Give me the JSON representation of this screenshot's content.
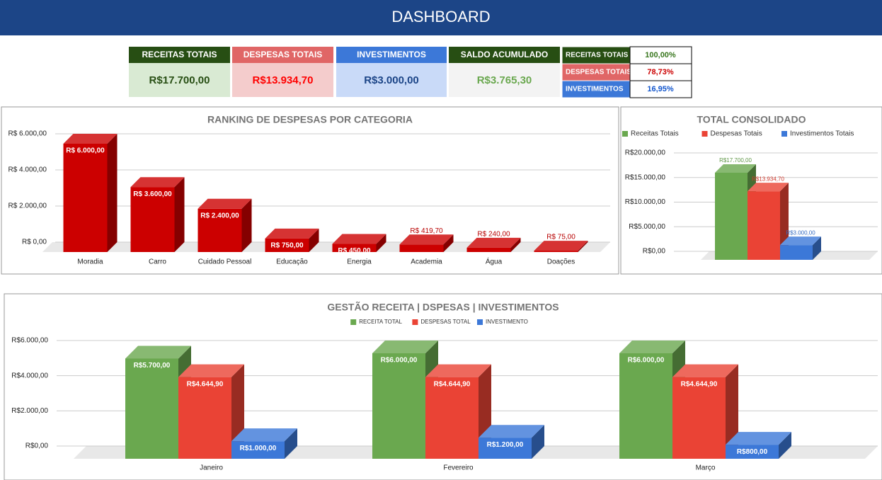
{
  "header": {
    "title": "DASHBOARD"
  },
  "kpis": [
    {
      "title": "RECEITAS TOTAIS",
      "value": "R$17.700,00"
    },
    {
      "title": "DESPESAS TOTAIS",
      "value": "R$13.934,70"
    },
    {
      "title": "INVESTIMENTOS",
      "value": "R$3.000,00"
    },
    {
      "title": "SALDO ACUMULADO",
      "value": "R$3.765,30"
    }
  ],
  "summary_table": {
    "rows": [
      [
        "RECEITAS TOTAIS",
        "100,00%"
      ],
      [
        "DESPESAS TOTAIS",
        "78,73%"
      ],
      [
        "INVESTIMENTOS",
        "16,95%"
      ]
    ]
  },
  "chart_data": [
    {
      "type": "bar",
      "title": "RANKING DE DESPESAS POR CATEGORIA",
      "categories": [
        "Moradia",
        "Carro",
        "Cuidado Pessoal",
        "Educação",
        "Energia",
        "Academia",
        "Água",
        "Doações"
      ],
      "values": [
        6000,
        3600,
        2400,
        750,
        450,
        419.7,
        240,
        75
      ],
      "value_labels": [
        "R$ 6.000,00",
        "R$ 3.600,00",
        "R$ 2.400,00",
        "R$ 750,00",
        "R$ 450,00",
        "R$ 419,70",
        "R$ 240,00",
        "R$ 75,00"
      ],
      "color": "#cc0000",
      "ylim": [
        0,
        6000
      ],
      "yticks": [
        {
          "value": 0,
          "label": "R$ 0,00"
        },
        {
          "value": 2000,
          "label": "R$ 2.000,00"
        },
        {
          "value": 4000,
          "label": "R$ 4.000,00"
        },
        {
          "value": 6000,
          "label": "R$ 6.000,00"
        }
      ],
      "grid": true
    },
    {
      "type": "bar",
      "title": "TOTAL CONSOLIDADO",
      "categories": [
        null
      ],
      "series": [
        {
          "name": "Receitas Totais",
          "color": "#6aa84f",
          "values": [
            17700
          ],
          "value_labels": [
            "R$17.700,00"
          ]
        },
        {
          "name": "Despesas Totais",
          "color": "#ea4335",
          "values": [
            13934.7
          ],
          "value_labels": [
            "R$13.934,70"
          ]
        },
        {
          "name": "Investimentos Totais",
          "color": "#3c78d8",
          "values": [
            3000
          ],
          "value_labels": [
            "R$3.000,00"
          ]
        }
      ],
      "ylim": [
        0,
        20000
      ],
      "yticks": [
        {
          "value": 0,
          "label": "R$0,00"
        },
        {
          "value": 5000,
          "label": "R$5.000,00"
        },
        {
          "value": 10000,
          "label": "R$10.000,00"
        },
        {
          "value": 15000,
          "label": "R$15.000,00"
        },
        {
          "value": 20000,
          "label": "R$20.000,00"
        }
      ],
      "grid": true,
      "legend": "top"
    },
    {
      "type": "bar",
      "title": "GESTÃO RECEITA | DSPESAS | INVESTIMENTOS",
      "categories": [
        "Janeiro",
        "Fevereiro",
        "Março"
      ],
      "series": [
        {
          "name": "RECEITA TOTAL",
          "color": "#6aa84f",
          "values": [
            5700,
            6000,
            6000
          ],
          "value_labels": [
            "R$5.700,00",
            "R$6.000,00",
            "R$6.000,00"
          ]
        },
        {
          "name": "DESPESAS TOTAL",
          "color": "#ea4335",
          "values": [
            4644.9,
            4644.9,
            4644.9
          ],
          "value_labels": [
            "R$4.644,90",
            "R$4.644,90",
            "R$4.644,90"
          ]
        },
        {
          "name": "INVESTIMENTO",
          "color": "#3c78d8",
          "values": [
            1000,
            1200,
            800
          ],
          "value_labels": [
            "R$1.000,00",
            "R$1.200,00",
            "R$800,00"
          ]
        }
      ],
      "ylim": [
        0,
        6000
      ],
      "yticks": [
        {
          "value": 0,
          "label": "R$0,00"
        },
        {
          "value": 2000,
          "label": "R$2.000,00"
        },
        {
          "value": 4000,
          "label": "R$4.000,00"
        },
        {
          "value": 6000,
          "label": "R$6.000,00"
        }
      ],
      "grid": true,
      "legend": "top"
    }
  ]
}
